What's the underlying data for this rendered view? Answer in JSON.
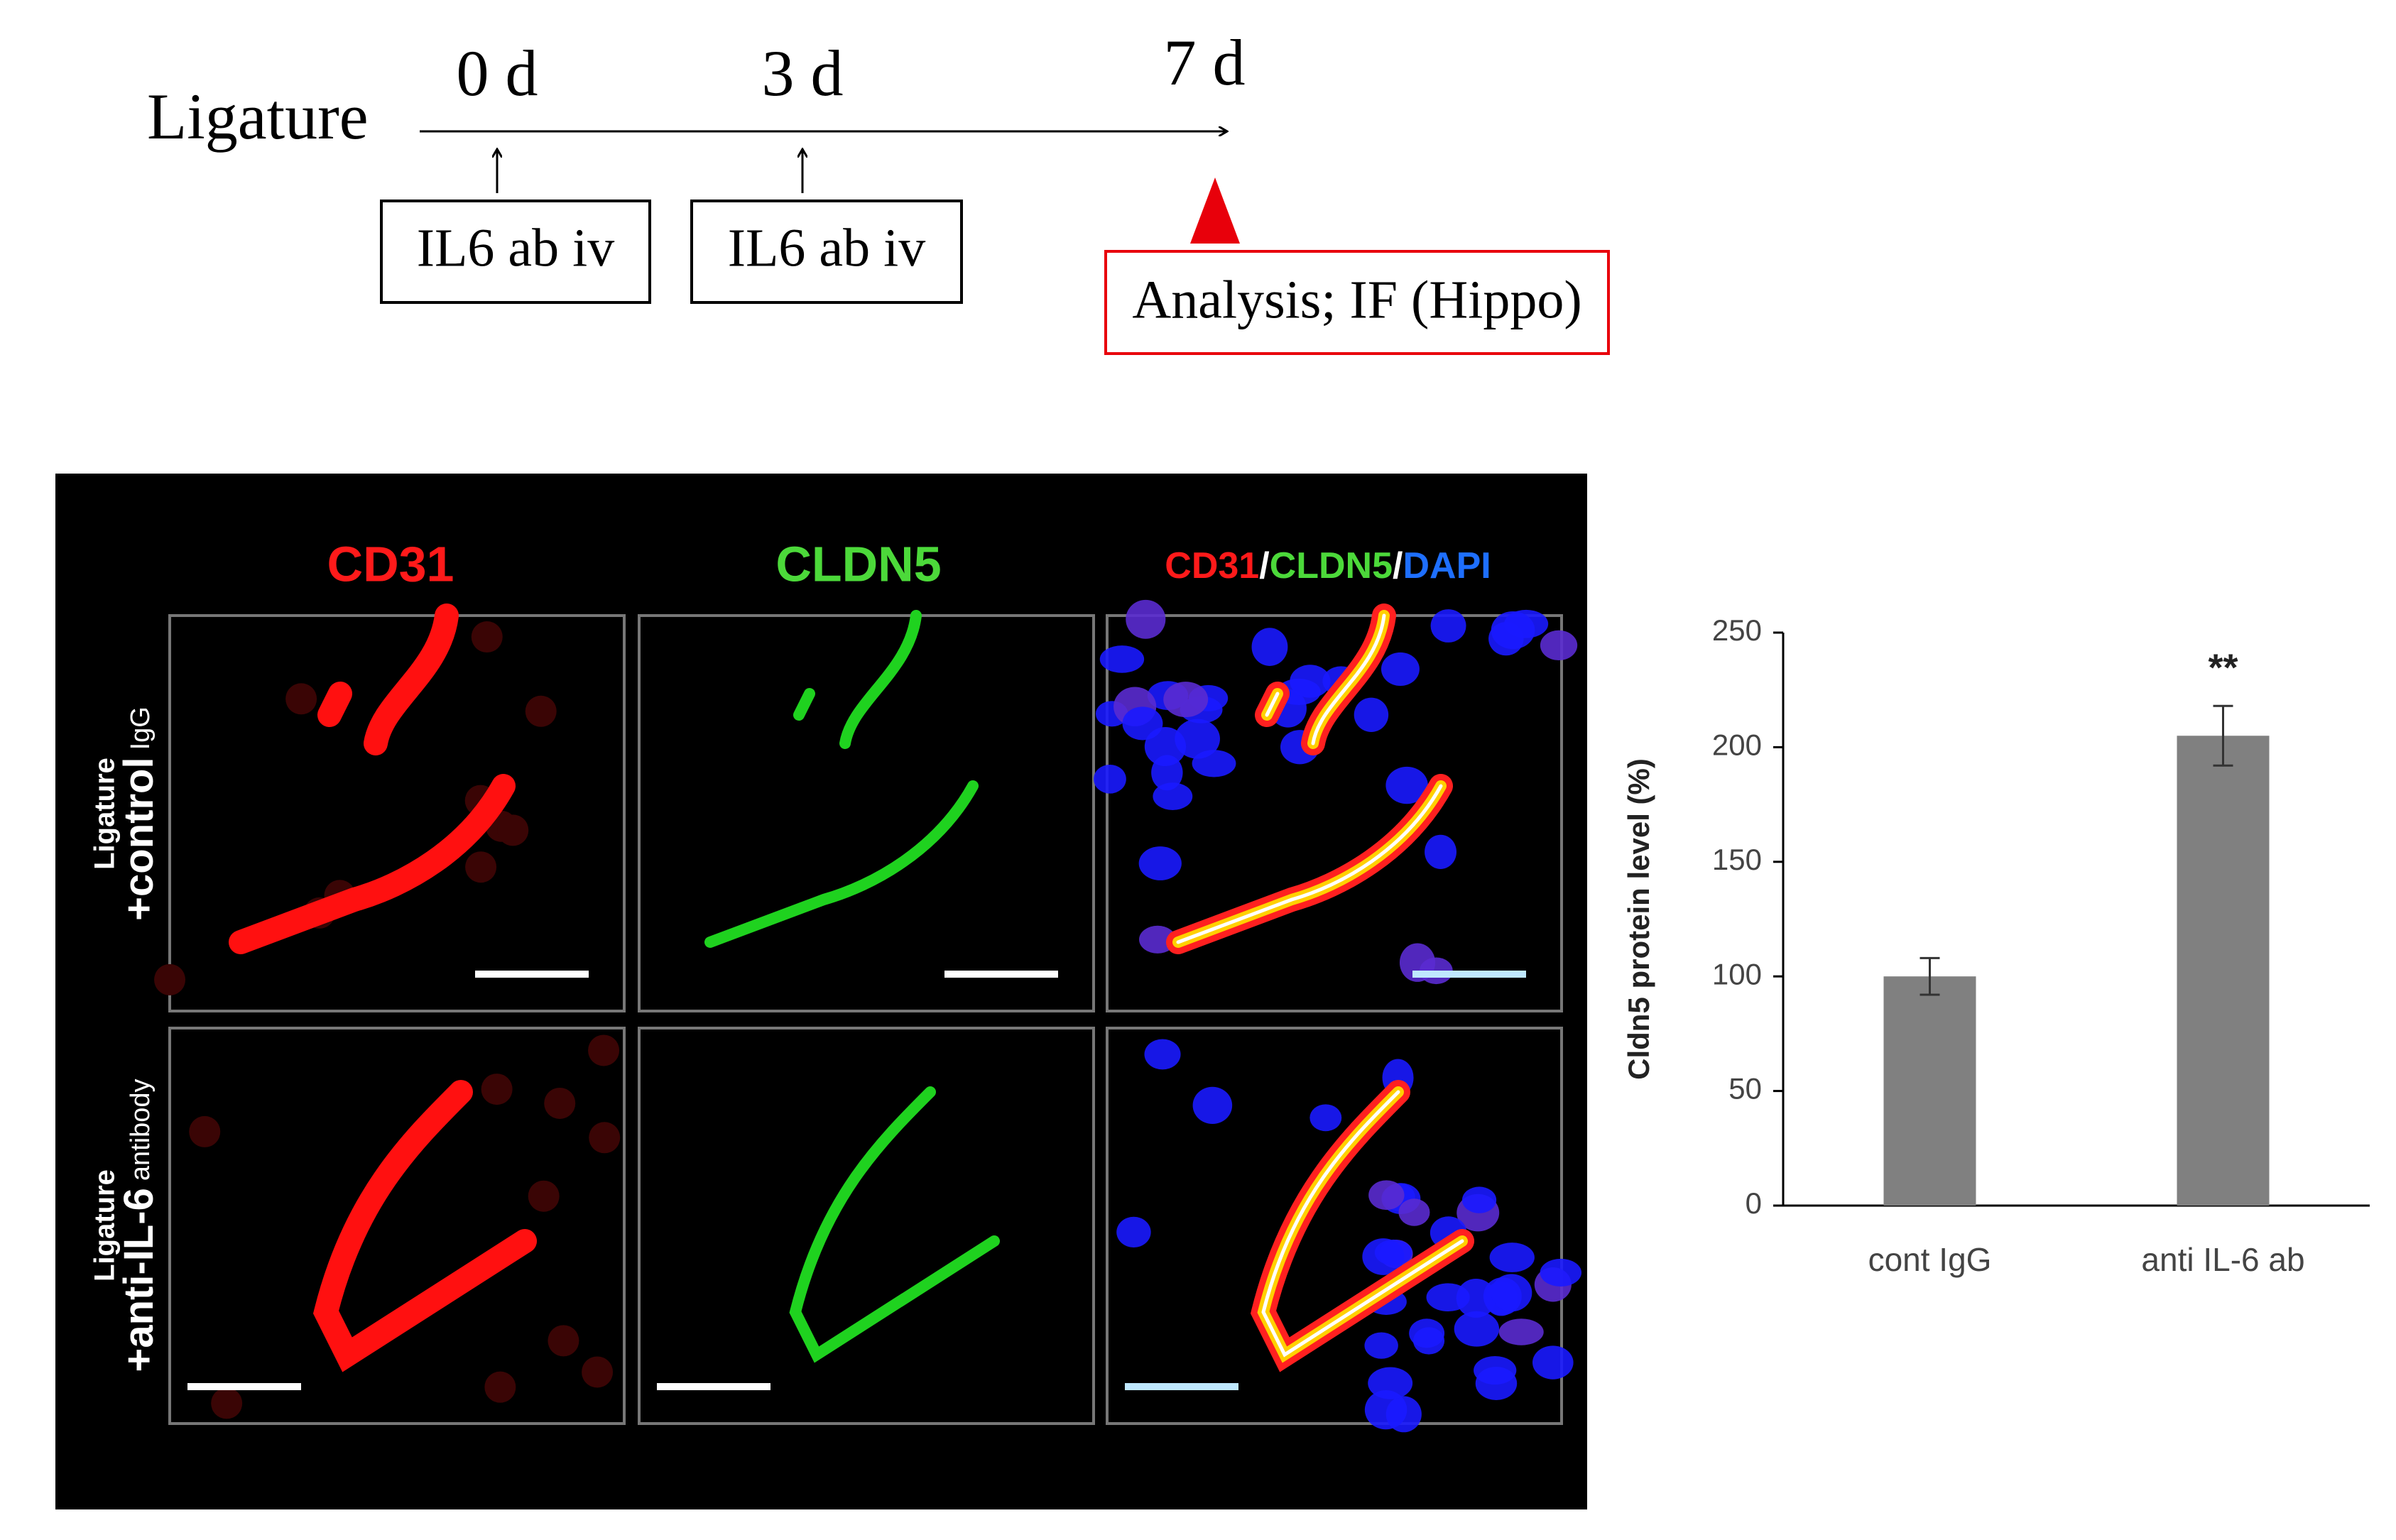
{
  "timeline": {
    "label": "Ligature",
    "timepoints": [
      "0 d",
      "3 d",
      "7 d"
    ],
    "treatments": [
      "IL6 ab iv",
      "IL6 ab iv"
    ],
    "analysis": "Analysis;  IF (Hippo)"
  },
  "micrographs": {
    "columns": [
      "CD31",
      "CLDN5"
    ],
    "merge_heading": [
      "CD31",
      "/",
      "CLDN5",
      "/",
      "DAPI"
    ],
    "rows": [
      {
        "top": "Ligature",
        "main": "+control",
        "small": "IgG"
      },
      {
        "top": "Ligature",
        "main": "+anti-IL-6",
        "small": "antibody"
      }
    ]
  },
  "chart_data": {
    "type": "bar",
    "y_label": "Cldn5 protein level (%)",
    "categories": [
      "cont IgG",
      "anti IL-6 ab"
    ],
    "values": [
      100,
      205
    ],
    "errors": [
      8,
      13
    ],
    "color": "#808080",
    "ylim": [
      0,
      250
    ],
    "yticks": [
      0,
      50,
      100,
      150,
      200,
      250
    ],
    "grid": false,
    "annotations": [
      {
        "text": "**",
        "category": "anti IL-6 ab"
      }
    ]
  }
}
